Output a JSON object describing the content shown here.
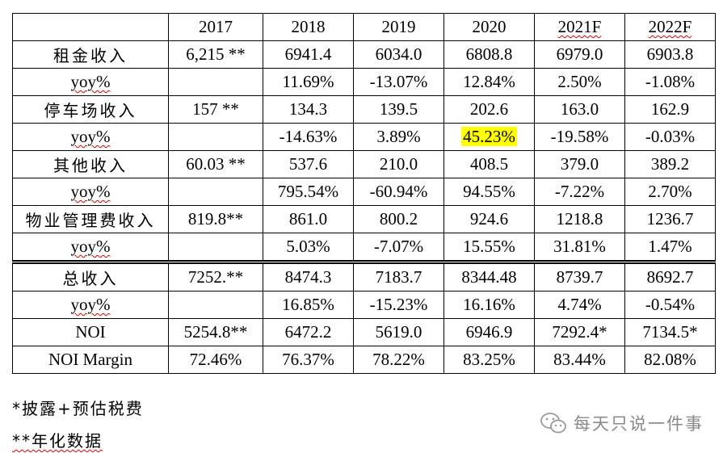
{
  "table": {
    "headers": [
      "",
      "2017",
      "2018",
      "2019",
      "2020",
      "2021F",
      "2022F"
    ],
    "rows": [
      {
        "label": "租金收入",
        "values": [
          "6,215 **",
          "6941.4",
          "6034.0",
          "6808.8",
          "6979.0",
          "6903.8"
        ]
      },
      {
        "label": "yoy%",
        "values": [
          "",
          "11.69%",
          "-13.07%",
          "12.84%",
          "2.50%",
          "-1.08%"
        ]
      },
      {
        "label": "停车场收入",
        "values": [
          "157 **",
          "134.3",
          "139.5",
          "202.6",
          "163.0",
          "162.9"
        ]
      },
      {
        "label": "yoy%",
        "values": [
          "",
          "-14.63%",
          "3.89%",
          "45.23%",
          "-19.58%",
          "-0.03%"
        ]
      },
      {
        "label": "其他收入",
        "values": [
          "60.03 **",
          "537.6",
          "210.0",
          "408.5",
          "379.0",
          "389.2"
        ]
      },
      {
        "label": "yoy%",
        "values": [
          "",
          "795.54%",
          "-60.94%",
          "94.55%",
          "-7.22%",
          "2.70%"
        ]
      },
      {
        "label": "物业管理费收入",
        "values": [
          "819.8**",
          "861.0",
          "800.2",
          "924.6",
          "1218.8",
          "1236.7"
        ]
      },
      {
        "label": "yoy%",
        "values": [
          "",
          "5.03%",
          "-7.07%",
          "15.55%",
          "31.81%",
          "1.47%"
        ]
      },
      {
        "label": "总收入",
        "values": [
          "7252.**",
          "8474.3",
          "7183.7",
          "8344.48",
          "8739.7",
          "8692.7"
        ]
      },
      {
        "label": "yoy%",
        "values": [
          "",
          "16.85%",
          "-15.23%",
          "16.16%",
          "4.74%",
          "-0.54%"
        ]
      },
      {
        "label": "NOI",
        "values": [
          "5254.8**",
          "6472.2",
          "5619.0",
          "6946.9",
          "7292.4*",
          "7134.5*"
        ]
      },
      {
        "label": "NOI Margin",
        "values": [
          "72.46%",
          "76.37%",
          "78.22%",
          "83.25%",
          "83.44%",
          "82.08%"
        ]
      }
    ],
    "highlight_color": "#ffff00"
  },
  "notes": {
    "note1": "*披露+预估税费",
    "note2": "**年化数据"
  },
  "watermark": {
    "text": "每天只说一件事",
    "icon": "wechat-icon"
  }
}
